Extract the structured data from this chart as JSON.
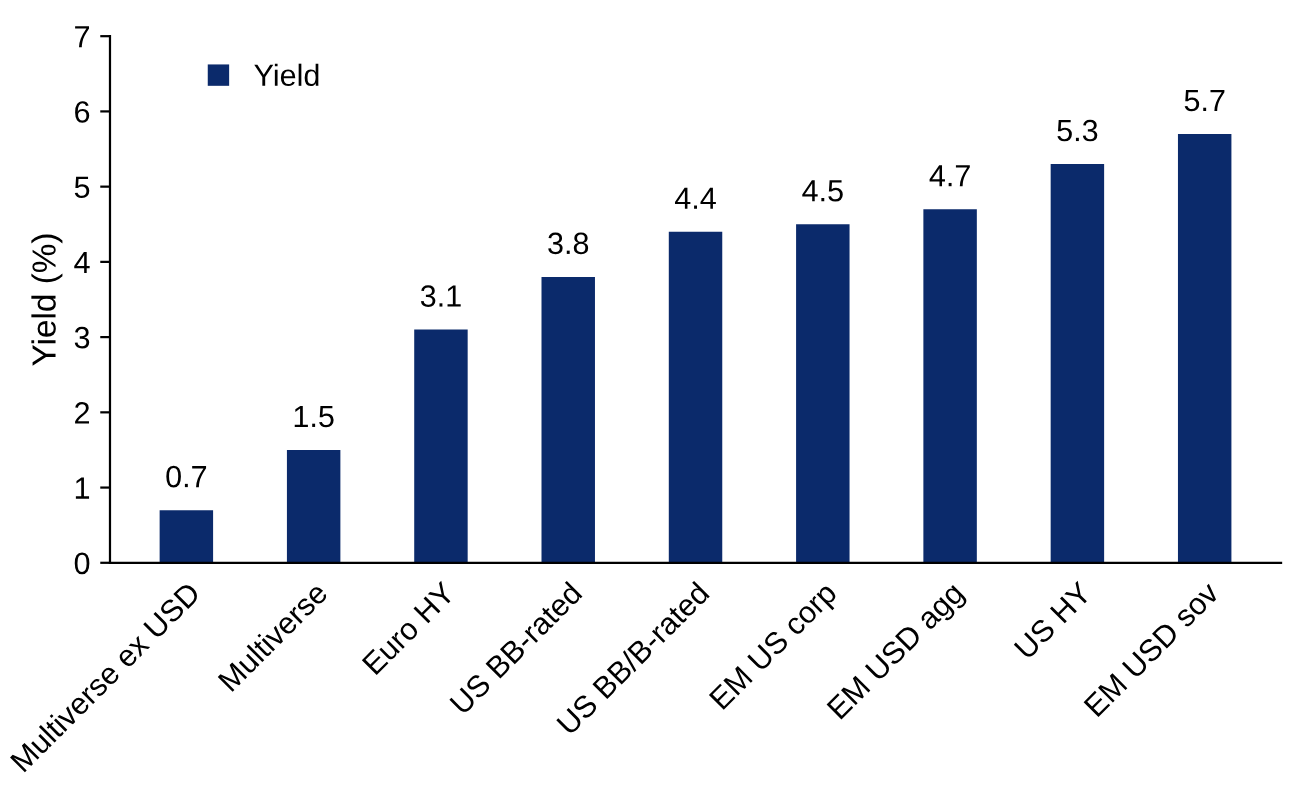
{
  "chart_data": {
    "type": "bar",
    "ylabel": "Yield (%)",
    "categories": [
      "Multiverse ex USD",
      "Multiverse",
      "Euro HY",
      "US BB-rated",
      "US BB/B-rated",
      "EM US corp",
      "EM USD agg",
      "US HY",
      "EM USD sov"
    ],
    "series": [
      {
        "name": "Yield",
        "color": "#0b2a6b",
        "values": [
          0.7,
          1.5,
          3.1,
          3.8,
          4.4,
          4.5,
          4.7,
          5.3,
          5.7
        ]
      }
    ],
    "ylim": [
      0,
      7
    ],
    "yticks": [
      0,
      1,
      2,
      3,
      4,
      5,
      6,
      7
    ],
    "data_labels": true,
    "grid": false,
    "legend": "top left"
  }
}
